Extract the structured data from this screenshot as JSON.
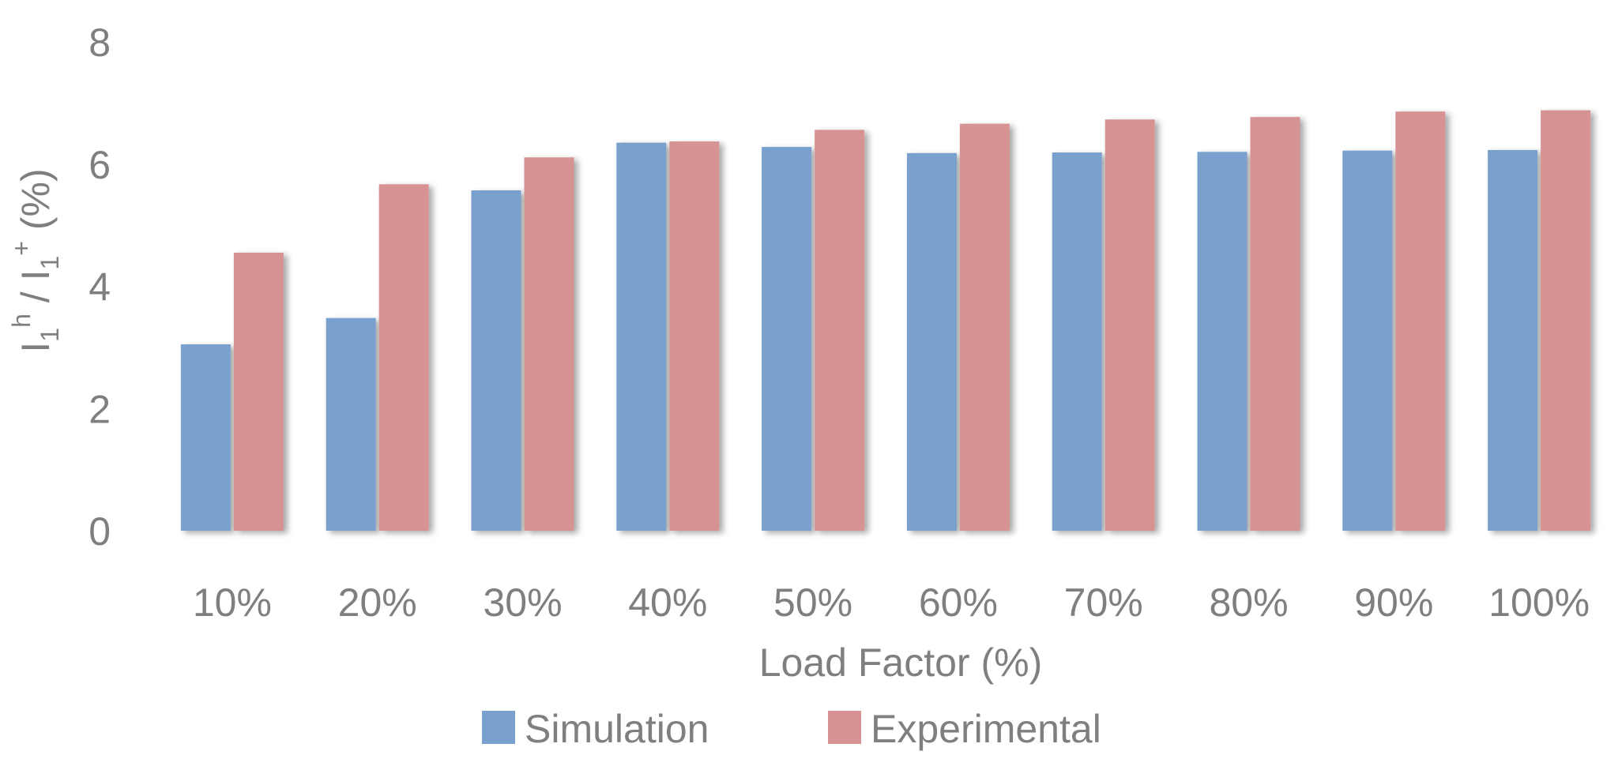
{
  "chart_data": {
    "type": "bar",
    "title": "",
    "xlabel": "Load Factor (%)",
    "ylabel": {
      "base": "I",
      "sub1": "1",
      "sup1": "h",
      "slash": " / ",
      "base2": "I",
      "sub2": "1",
      "sup2": "+",
      "unit": "  (%)"
    },
    "categories": [
      "10%",
      "20%",
      "30%",
      "40%",
      "50%",
      "60%",
      "70%",
      "80%",
      "90%",
      "100%"
    ],
    "series": [
      {
        "name": "Simulation",
        "color": "#7aa0cd",
        "values": [
          3.05,
          3.48,
          5.57,
          6.35,
          6.28,
          6.18,
          6.19,
          6.2,
          6.22,
          6.23
        ]
      },
      {
        "name": "Experimental",
        "color": "#d79393",
        "values": [
          4.55,
          5.67,
          6.11,
          6.37,
          6.56,
          6.66,
          6.73,
          6.77,
          6.86,
          6.88
        ]
      }
    ],
    "ylim": [
      0,
      8
    ],
    "yticks": [
      "0",
      "2",
      "4",
      "6",
      "8"
    ],
    "grid": true,
    "legend": "bottom-center"
  }
}
